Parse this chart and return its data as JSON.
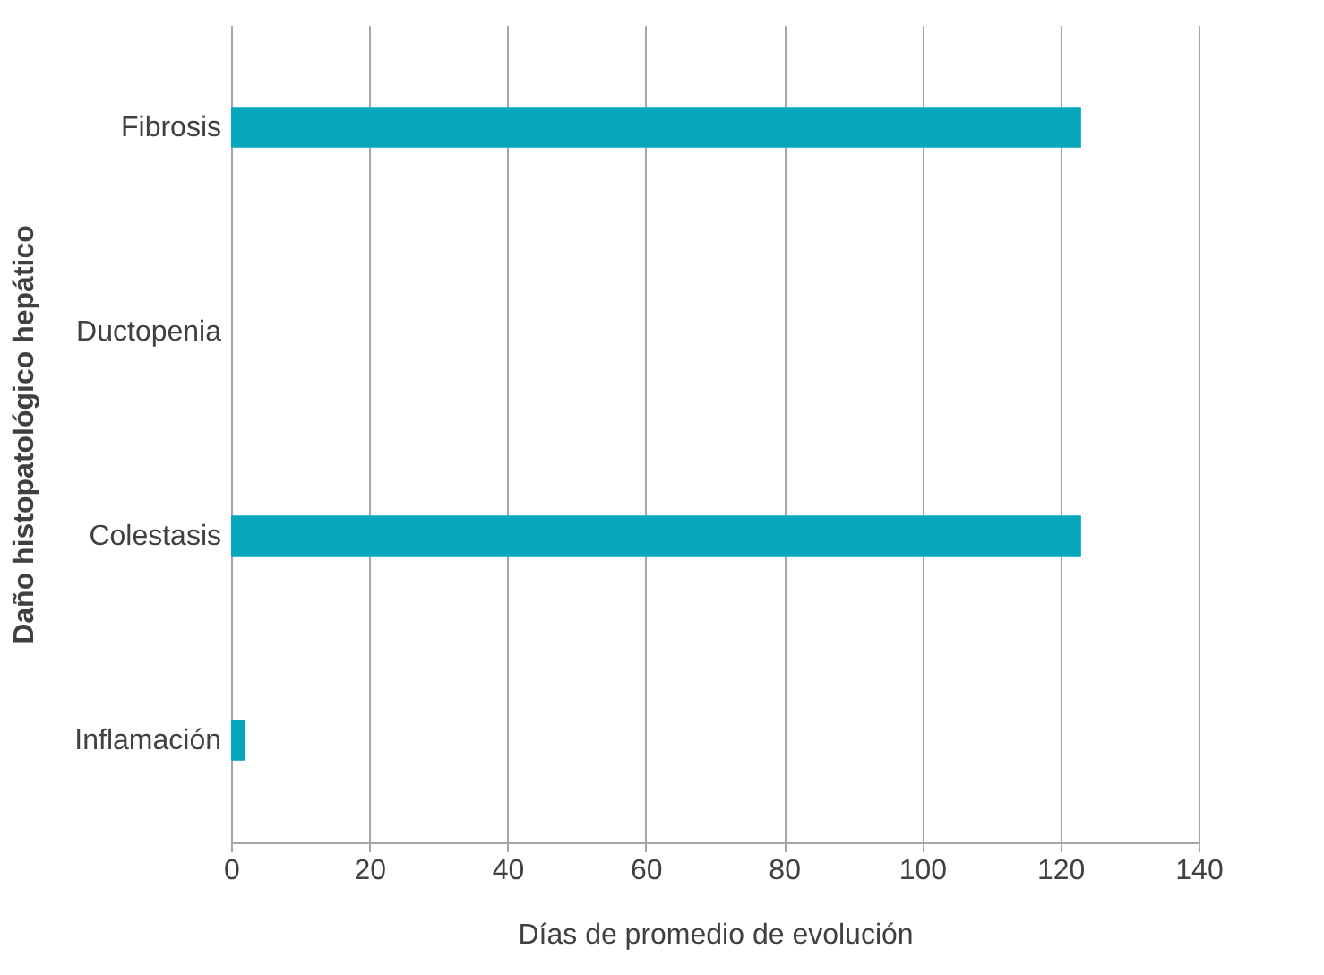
{
  "chart_data": {
    "type": "bar",
    "orientation": "horizontal",
    "xlabel": "Días de promedio de evolución",
    "ylabel": "Daño histopatológico hepático",
    "categories": [
      "Fibrosis",
      "Ductopenia",
      "Colestasis",
      "Inflamación"
    ],
    "values": [
      123,
      0,
      123,
      2
    ],
    "color": "#06a6bd",
    "xlim": [
      0,
      140
    ],
    "xticks": [
      0,
      20,
      40,
      60,
      80,
      100,
      120,
      140
    ],
    "grid": "x"
  }
}
